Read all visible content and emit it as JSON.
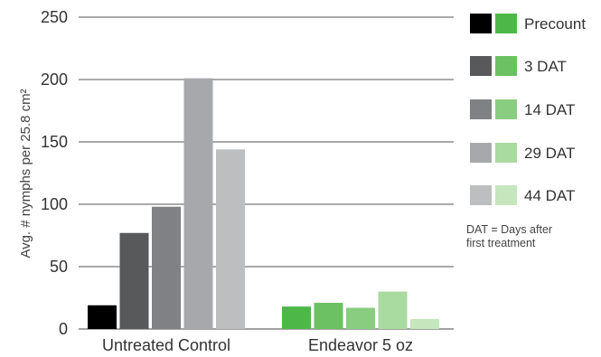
{
  "chart_data": {
    "type": "bar",
    "title": "",
    "xlabel": "",
    "ylabel": "Avg. # nymphs per 25.8 cm²",
    "ylim": [
      0,
      250
    ],
    "yticks": [
      0,
      50,
      100,
      150,
      200,
      250
    ],
    "grid": true,
    "legend_position": "right",
    "categories": [
      "Untreated Control",
      "Endeavor 5 oz"
    ],
    "series": [
      {
        "name": "Precount",
        "values": [
          19,
          18
        ]
      },
      {
        "name": "3 DAT",
        "values": [
          77,
          21
        ]
      },
      {
        "name": "14 DAT",
        "values": [
          98,
          17
        ]
      },
      {
        "name": "29 DAT",
        "values": [
          201,
          30
        ]
      },
      {
        "name": "44 DAT",
        "values": [
          144,
          8
        ]
      }
    ],
    "colors": {
      "Untreated Control": [
        "#000000",
        "#58595b",
        "#808184",
        "#a6a8ab",
        "#bcbec0"
      ],
      "Endeavor 5 oz": [
        "#4db848",
        "#6cc163",
        "#89cd80",
        "#a9da9f",
        "#c6e6bd"
      ]
    },
    "note": [
      "DAT = Days after",
      "first treatment"
    ]
  }
}
